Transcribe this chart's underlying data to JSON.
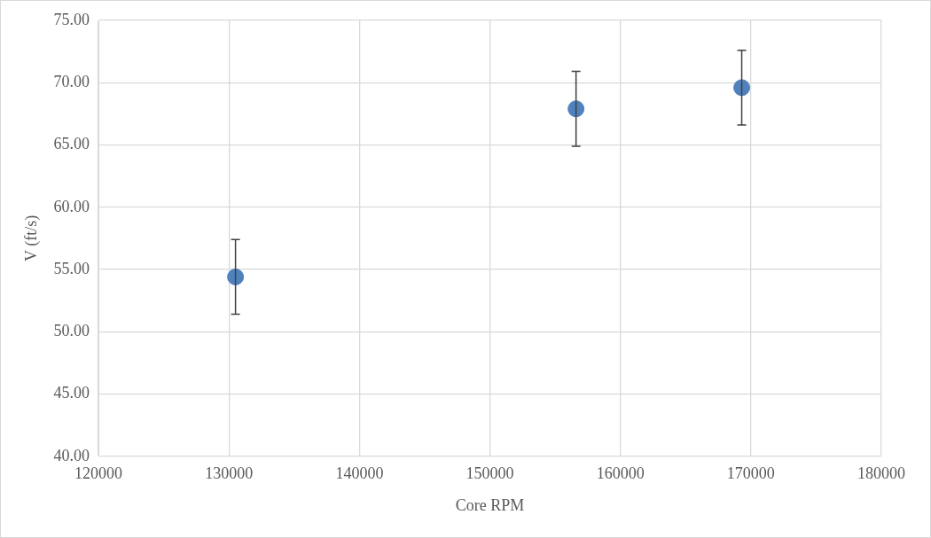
{
  "chart_data": {
    "type": "scatter",
    "xlabel": "Core RPM",
    "ylabel": "V (ft/s)",
    "x": [
      130500,
      156600,
      169300
    ],
    "values": [
      54.4,
      67.9,
      69.6
    ],
    "errors": [
      3,
      3,
      3
    ],
    "color": "#4f81bd",
    "marker": "circle",
    "grid": true,
    "legend": false,
    "xlim": [
      120000,
      180000
    ],
    "xticks": [
      120000,
      130000,
      140000,
      150000,
      160000,
      170000,
      180000
    ],
    "ylim": [
      40,
      75
    ],
    "yticks": [
      {
        "value": 40,
        "label": "40.00"
      },
      {
        "value": 45,
        "label": "45.00"
      },
      {
        "value": 50,
        "label": "50.00"
      },
      {
        "value": 55,
        "label": "55.00"
      },
      {
        "value": 60,
        "label": "60.00"
      },
      {
        "value": 65,
        "label": "65.00"
      },
      {
        "value": 70,
        "label": "70.00"
      },
      {
        "value": 75,
        "label": "75.00"
      }
    ]
  }
}
